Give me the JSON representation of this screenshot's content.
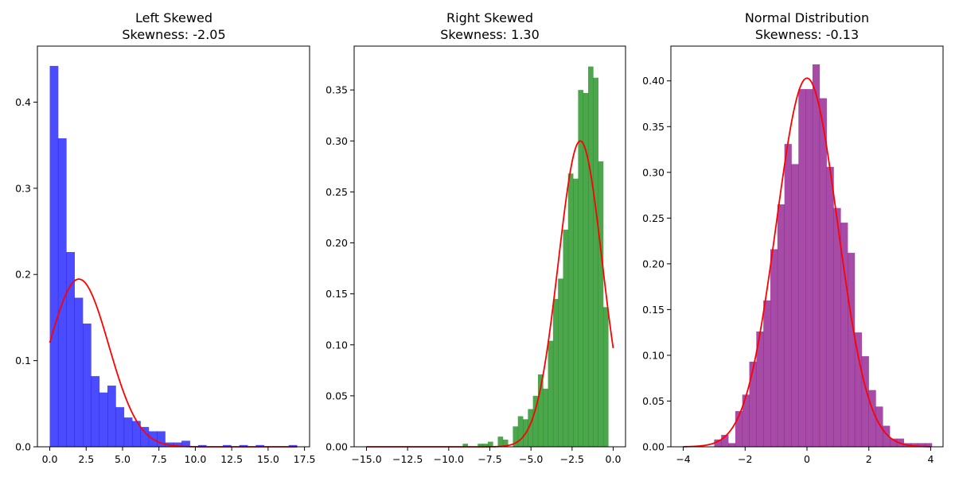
{
  "chart_data": [
    {
      "type": "bar",
      "title": [
        "Left Skewed",
        "Skewness: -2.05"
      ],
      "xlabel": "",
      "ylabel": "",
      "xlim": [
        -0.85,
        17.85
      ],
      "ylim": [
        0,
        0.465
      ],
      "xticks": [
        0,
        2.5,
        5,
        7.5,
        10,
        12.5,
        15,
        17.5
      ],
      "xtick_labels": [
        "0.0",
        "2.5",
        "5.0",
        "7.5",
        "10.0",
        "12.5",
        "15.0",
        "17.5"
      ],
      "yticks": [
        0,
        0.1,
        0.2,
        0.3,
        0.4
      ],
      "ytick_labels": [
        "0.0",
        "0.1",
        "0.2",
        "0.3",
        "0.4"
      ],
      "bar_color": "#0000ff",
      "bin_start": 0.0,
      "bin_width": 0.566,
      "values": [
        0.442,
        0.358,
        0.226,
        0.173,
        0.143,
        0.082,
        0.063,
        0.071,
        0.046,
        0.034,
        0.03,
        0.023,
        0.018,
        0.018,
        0.005,
        0.005,
        0.007,
        0.0,
        0.002,
        0.0,
        0.0,
        0.002,
        0.0,
        0.002,
        0.0,
        0.002,
        0.0,
        0.0,
        0.0,
        0.002
      ],
      "curve": {
        "type": "normal-pdf",
        "mean": 2.0,
        "std": 2.05,
        "color": "#ff0000"
      }
    },
    {
      "type": "bar",
      "title": [
        "Right Skewed",
        "Skewness: 1.30"
      ],
      "xlabel": "",
      "ylabel": "",
      "xlim": [
        -15.75,
        0.75
      ],
      "ylim": [
        0,
        0.393
      ],
      "xticks": [
        -15,
        -12.5,
        -10,
        -7.5,
        -5,
        -2.5,
        0
      ],
      "xtick_labels": [
        "−15.0",
        "−12.5",
        "−10.0",
        "−7.5",
        "−5.0",
        "−2.5",
        "0.0"
      ],
      "yticks": [
        0,
        0.05,
        0.1,
        0.15,
        0.2,
        0.25,
        0.3,
        0.35
      ],
      "ytick_labels": [
        "0.00",
        "0.05",
        "0.10",
        "0.15",
        "0.20",
        "0.25",
        "0.30",
        "0.35"
      ],
      "bar_color": "#008000",
      "bin_start": -9.15,
      "bin_width": 0.305,
      "values": [
        0.003,
        0.0,
        0.0,
        0.003,
        0.003,
        0.005,
        0.0,
        0.01,
        0.007,
        0.0,
        0.02,
        0.03,
        0.027,
        0.037,
        0.05,
        0.071,
        0.057,
        0.104,
        0.145,
        0.165,
        0.213,
        0.268,
        0.263,
        0.35,
        0.347,
        0.373,
        0.362,
        0.28,
        0.137,
        0.0
      ],
      "curve": {
        "type": "normal-pdf",
        "mean": -2.0,
        "std": 1.33,
        "color": "#ff0000"
      }
    },
    {
      "type": "bar",
      "title": [
        "Normal Distribution",
        "Skewness: -0.13"
      ],
      "xlabel": "",
      "ylabel": "",
      "xlim": [
        -4.4,
        4.4
      ],
      "ylim": [
        0,
        0.438
      ],
      "xticks": [
        -4,
        -2,
        0,
        2,
        4
      ],
      "xtick_labels": [
        "−4",
        "−2",
        "0",
        "2",
        "4"
      ],
      "yticks": [
        0,
        0.05,
        0.1,
        0.15,
        0.2,
        0.25,
        0.3,
        0.35,
        0.4
      ],
      "ytick_labels": [
        "0.00",
        "0.05",
        "0.10",
        "0.15",
        "0.20",
        "0.25",
        "0.30",
        "0.35",
        "0.40"
      ],
      "bar_color": "#800080",
      "bin_start": -3.0,
      "bin_width": 0.227,
      "values": [
        0.008,
        0.013,
        0.004,
        0.039,
        0.057,
        0.093,
        0.126,
        0.16,
        0.216,
        0.265,
        0.331,
        0.309,
        0.391,
        0.391,
        0.418,
        0.381,
        0.306,
        0.261,
        0.245,
        0.212,
        0.125,
        0.099,
        0.062,
        0.044,
        0.023,
        0.009,
        0.009,
        0.004,
        0.004,
        0.004,
        0.004
      ],
      "curve": {
        "type": "normal-pdf",
        "mean": 0.0,
        "std": 0.99,
        "color": "#ff0000"
      }
    }
  ]
}
